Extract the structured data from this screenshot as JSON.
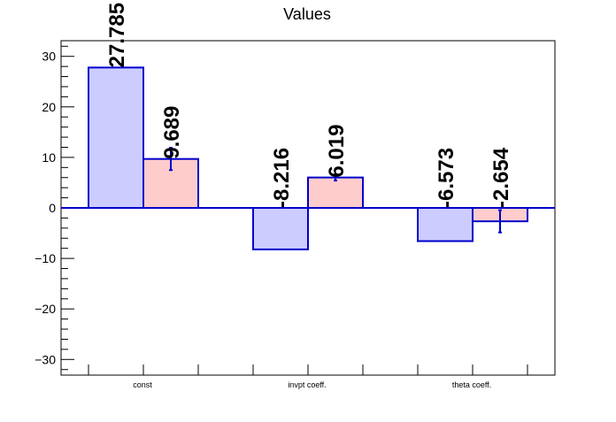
{
  "chart_data": {
    "type": "bar",
    "title": "Values",
    "xlabel": "",
    "ylabel": "",
    "ylim": [
      -33.1,
      33.1
    ],
    "yticks": [
      -30,
      -20,
      -10,
      0,
      10,
      20,
      30
    ],
    "ytick_labels": [
      "−30",
      "−20",
      "−10",
      "0",
      "10",
      "20",
      "30"
    ],
    "categories": [
      "const",
      "invpt coeff.",
      "theta coeff."
    ],
    "series": [
      {
        "values": [
          27.785,
          -8.216,
          -6.573
        ],
        "labels": [
          "27.785",
          "-8.216",
          "-6.573"
        ],
        "errors": [
          0,
          0,
          0
        ],
        "fill": "#ccccff",
        "stroke": "#0000cc"
      },
      {
        "values": [
          9.689,
          6.019,
          -2.654
        ],
        "labels": [
          "9.689",
          "6.019",
          "-2.654"
        ],
        "errors": [
          2.2,
          0.6,
          2.2
        ],
        "fill": "#ffcccc",
        "stroke": "#0000cc"
      }
    ],
    "grid": false,
    "zero_line": true
  }
}
